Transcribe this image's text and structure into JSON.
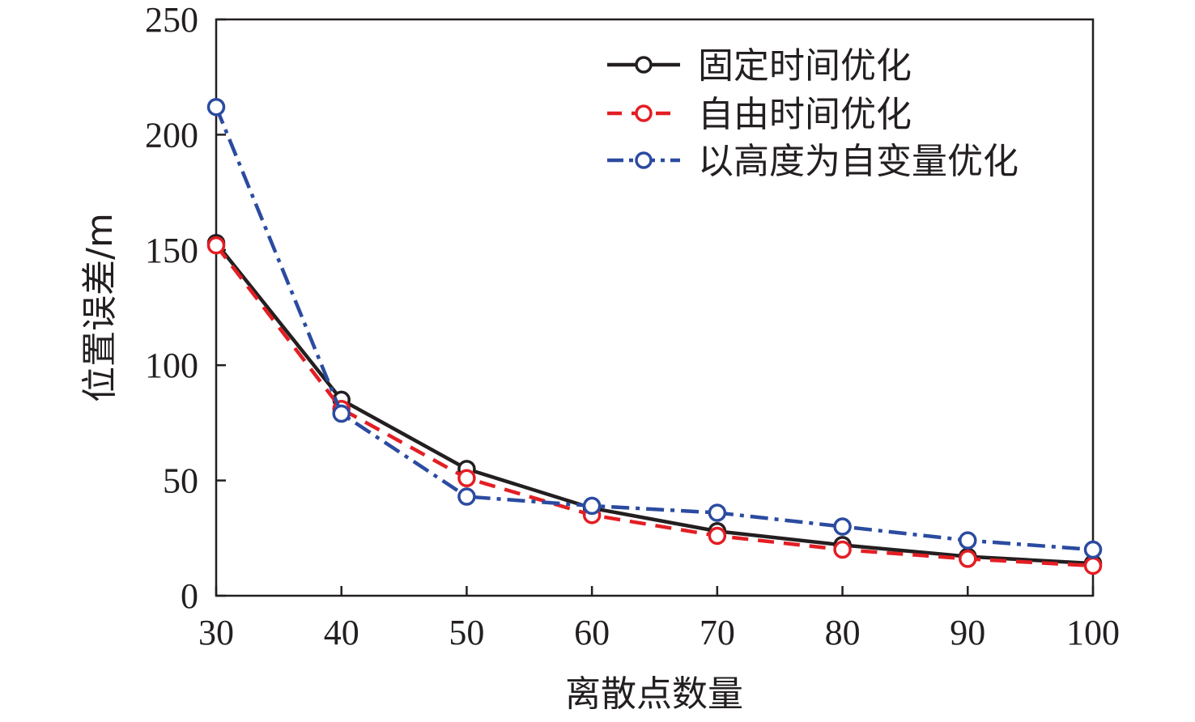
{
  "chart_data": {
    "type": "line",
    "xlabel": "离散点数量",
    "ylabel": "位置误差/m",
    "xlim": [
      30,
      100
    ],
    "ylim": [
      0,
      250
    ],
    "x": [
      30,
      40,
      50,
      60,
      70,
      80,
      90,
      100
    ],
    "x_ticks": [
      "30",
      "40",
      "50",
      "60",
      "70",
      "80",
      "90",
      "100"
    ],
    "y_ticks": [
      "0",
      "50",
      "100",
      "150",
      "200",
      "250"
    ],
    "grid": false,
    "legend_position": "top-right",
    "series": [
      {
        "name": "固定时间优化",
        "values": [
          153,
          85,
          55,
          38,
          28,
          22,
          17,
          14
        ],
        "color": "#231f20",
        "line_style": "solid"
      },
      {
        "name": "自由时间优化",
        "values": [
          152,
          81,
          51,
          35,
          26,
          20,
          16,
          13
        ],
        "color": "#e31e24",
        "line_style": "dashed"
      },
      {
        "name": "以高度为自变量优化",
        "values": [
          212,
          79,
          43,
          39,
          36,
          30,
          24,
          20
        ],
        "color": "#2b4ba0",
        "line_style": "dashdot"
      }
    ]
  }
}
